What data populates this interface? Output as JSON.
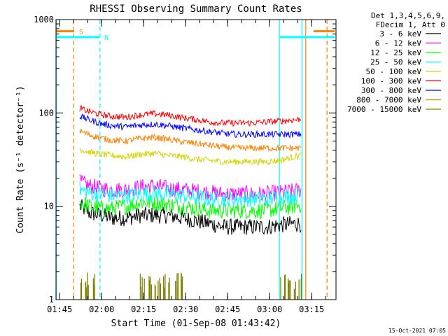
{
  "chart_data": {
    "type": "line",
    "title": "RHESSI Observing Summary Count Rates",
    "xlabel": "Start Time (01-Sep-08 01:43:42)",
    "ylabel": "Count Rate (s⁻¹ detector⁻¹)",
    "x_unit": "minutes after 01:43:42",
    "xlim": [
      0,
      100
    ],
    "ylim": [
      1,
      1000
    ],
    "y_scale": "log",
    "x_ticks": [
      {
        "x": 1.3,
        "label": "01:45"
      },
      {
        "x": 16.3,
        "label": "02:00"
      },
      {
        "x": 31.3,
        "label": "02:15"
      },
      {
        "x": 46.3,
        "label": "02:30"
      },
      {
        "x": 61.3,
        "label": "02:45"
      },
      {
        "x": 76.3,
        "label": "03:00"
      },
      {
        "x": 91.3,
        "label": "03:15"
      }
    ],
    "y_ticks": [
      {
        "y": 1,
        "label": "1"
      },
      {
        "y": 10,
        "label": "10"
      },
      {
        "y": 100,
        "label": "100"
      },
      {
        "y": 1000,
        "label": "1000"
      }
    ],
    "legend": {
      "placement": "right",
      "header": [
        "Det 1,3,4,5,6,9,",
        "FDecim 1, Att 0"
      ]
    },
    "timestamp": "15-Oct-2021 07:05",
    "series": [
      {
        "name": "3 - 6 keV",
        "color": "#000000",
        "x": [
          8.5,
          12,
          16,
          20,
          25,
          30,
          35,
          40,
          45,
          50,
          55,
          60,
          65,
          70,
          75,
          80,
          85,
          87.5
        ],
        "y": [
          10,
          8.5,
          8,
          7.5,
          7.5,
          8,
          8,
          8,
          7.5,
          7,
          6.5,
          6,
          6,
          6,
          6,
          6.3,
          6.5,
          6.5
        ]
      },
      {
        "name": "6 - 12 keV",
        "color": "#ff00ff",
        "x": [
          8.5,
          12,
          16,
          20,
          25,
          30,
          35,
          40,
          45,
          50,
          55,
          60,
          65,
          70,
          75,
          80,
          85,
          87.5
        ],
        "y": [
          18,
          16.5,
          15.5,
          15,
          15,
          16,
          16.5,
          15.5,
          15,
          14.5,
          14,
          13.5,
          13.5,
          13.5,
          13.5,
          14,
          14.5,
          15
        ]
      },
      {
        "name": "12 - 25 keV",
        "color": "#00ff00",
        "x": [
          8.5,
          12,
          16,
          20,
          25,
          30,
          35,
          40,
          45,
          50,
          55,
          60,
          65,
          70,
          75,
          80,
          85,
          87.5
        ],
        "y": [
          11,
          10,
          9.5,
          9.5,
          10,
          11,
          11,
          10.5,
          10,
          9.5,
          9,
          9,
          9,
          9,
          9,
          9.5,
          10,
          10.5
        ]
      },
      {
        "name": "25 - 50 keV",
        "color": "#00ffff",
        "x": [
          8.5,
          12,
          16,
          20,
          25,
          30,
          35,
          40,
          45,
          50,
          55,
          60,
          65,
          70,
          75,
          80,
          85,
          87.5
        ],
        "y": [
          15,
          14,
          13.5,
          13,
          13,
          13.5,
          14,
          13.5,
          13,
          12.5,
          12,
          12,
          12,
          12,
          12,
          12.5,
          13,
          13.5
        ]
      },
      {
        "name": "50 - 100 keV",
        "color": "#d4d400",
        "x": [
          8.5,
          12,
          16,
          20,
          25,
          30,
          35,
          40,
          45,
          50,
          55,
          60,
          65,
          70,
          75,
          80,
          85,
          87.5
        ],
        "y": [
          41,
          38,
          36,
          35,
          34,
          36,
          37,
          35,
          34,
          32,
          31,
          30,
          30,
          30,
          30,
          31,
          34,
          35
        ]
      },
      {
        "name": "100 - 300 keV",
        "color": "#ff0000",
        "x": [
          8.5,
          12,
          16,
          20,
          25,
          30,
          35,
          40,
          45,
          50,
          55,
          60,
          65,
          70,
          75,
          80,
          85,
          87.5
        ],
        "y": [
          112,
          103,
          96,
          92,
          90,
          95,
          98,
          95,
          89,
          85,
          80,
          78,
          78,
          78,
          80,
          82,
          84,
          86
        ]
      },
      {
        "name": "300 - 800 keV",
        "color": "#0000ff",
        "x": [
          8.5,
          12,
          16,
          20,
          25,
          30,
          35,
          40,
          45,
          50,
          55,
          60,
          65,
          70,
          75,
          80,
          85,
          87.5
        ],
        "y": [
          92,
          84,
          77,
          73,
          71,
          74,
          76,
          73,
          69,
          66,
          63,
          60,
          59,
          59,
          59,
          59,
          59,
          59
        ]
      },
      {
        "name": "800 - 7000 keV",
        "color": "#ff8000",
        "x": [
          8.5,
          12,
          16,
          20,
          25,
          30,
          35,
          40,
          45,
          50,
          55,
          60,
          65,
          70,
          75,
          80,
          85,
          87.5
        ],
        "y": [
          64,
          58,
          54,
          51,
          50,
          53,
          55,
          52,
          49,
          47,
          45,
          43,
          42,
          42,
          42,
          42,
          42,
          42
        ]
      },
      {
        "name": "7000 - 15000 keV",
        "color": "#808000",
        "x": [],
        "y": []
      }
    ],
    "attenuator_bursts": [
      {
        "x_start": 8.5,
        "x_end": 14.5,
        "count": 10
      },
      {
        "x_start": 29.5,
        "x_end": 45.5,
        "count": 28
      },
      {
        "x_start": 80,
        "x_end": 88,
        "count": 12
      }
    ],
    "state_bars": [
      {
        "label": "S",
        "color": "#ff8000",
        "y": 750,
        "segments": [
          [
            0,
            6.5
          ],
          [
            92,
            99.5
          ]
        ]
      },
      {
        "label": "N",
        "color": "#00ffff",
        "y": 650,
        "segments": [
          [
            0,
            15.5
          ],
          [
            80,
            99.5
          ]
        ]
      }
    ],
    "vertical_markers": [
      {
        "x": 0.1,
        "color": "#00ffff",
        "style": "solid"
      },
      {
        "x": 6.3,
        "color": "#ff8000",
        "style": "dashed"
      },
      {
        "x": 15.7,
        "color": "#00ffff",
        "style": "dashed"
      },
      {
        "x": 79.8,
        "color": "#00ffff",
        "style": "solid"
      },
      {
        "x": 87.9,
        "color": "#00ffff",
        "style": "solid"
      },
      {
        "x": 89.2,
        "color": "#ff8000",
        "style": "solid"
      },
      {
        "x": 96.8,
        "color": "#ff8000",
        "style": "dashed"
      }
    ]
  }
}
